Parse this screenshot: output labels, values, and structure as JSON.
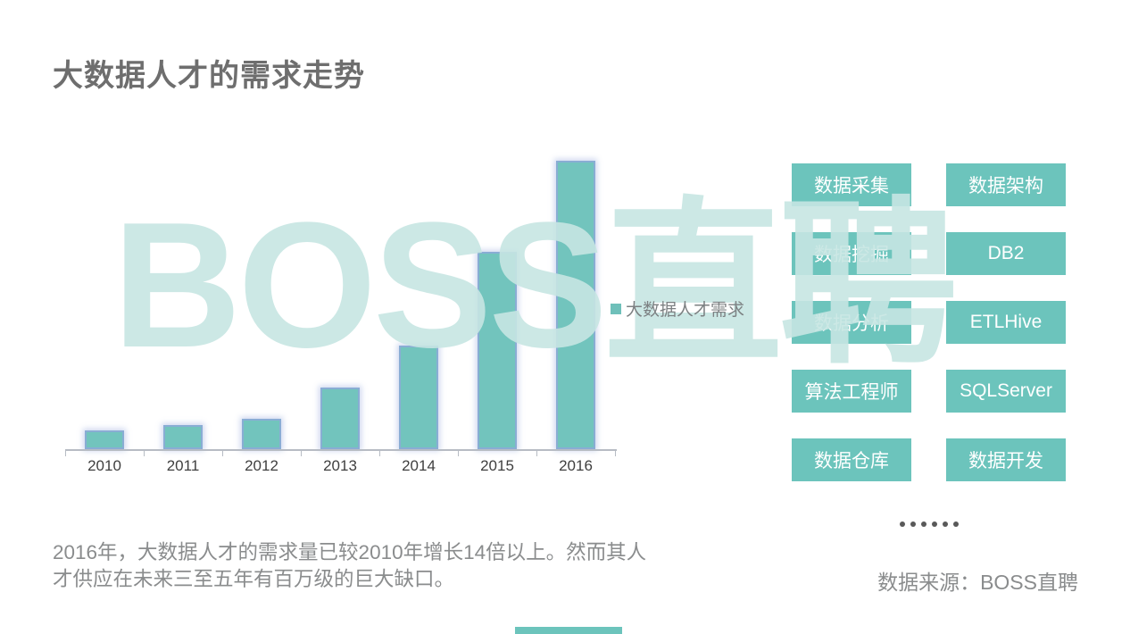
{
  "slide": {
    "title": "大数据人才的需求走势",
    "watermark_text": "BOSS直聘",
    "footnote": "2016年，大数据人才的需求量已较2010年增长14倍以上。然而其人才供应在未来三至五年有百万级的巨大缺口。",
    "source": "数据来源：BOSS直聘",
    "ellipsis_dot_count": 6
  },
  "colors": {
    "accent_teal": "#6cc4bc",
    "bar_fill": "#72c4bd",
    "bar_glow_blue": "#92a6dc",
    "title_gray": "#6e6e6e",
    "body_text_gray": "#8a8c8d",
    "axis_gray": "#b7bcc4",
    "tick_label_dark": "#3f3f3f",
    "legend_text_gray": "#7c8082",
    "watermark_teal": "#c7e6e2",
    "dot_gray": "#595959"
  },
  "chart_data": {
    "type": "bar",
    "title": "大数据人才的需求走势",
    "categories": [
      "2010",
      "2011",
      "2012",
      "2013",
      "2014",
      "2015",
      "2016"
    ],
    "series": [
      {
        "name": "大数据人才需求",
        "values": [
          1.0,
          1.3,
          1.6,
          3.3,
          5.5,
          10.5,
          15.4
        ]
      }
    ],
    "xlabel": "",
    "ylabel": "",
    "ylim": [
      0,
      16
    ],
    "grid": false,
    "y_axis_shown": false,
    "legend": {
      "label": "大数据人才需求",
      "position": "right",
      "marker_color": "#6fc0ba"
    }
  },
  "tags": {
    "items": [
      "数据采集",
      "数据架构",
      "数据挖掘",
      "DB2",
      "数据分析",
      "ETLHive",
      "算法工程师",
      "SQLServer",
      "数据仓库",
      "数据开发"
    ]
  }
}
